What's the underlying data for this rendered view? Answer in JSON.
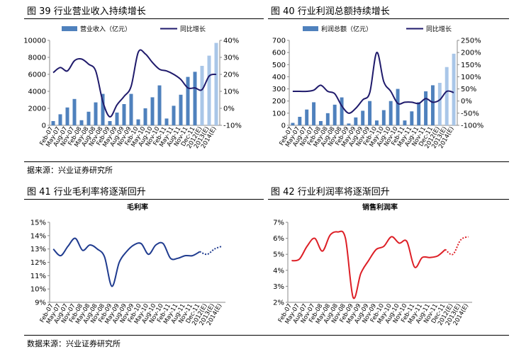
{
  "figures": {
    "fig39_title": "图 39 行业营业收入持续增长",
    "fig40_title": "图 40 行业利润总额持续增长",
    "fig41_title": "图 41 行业毛利率将逐渐回升",
    "fig42_title": "图 42 行业利润率将逐渐回升",
    "source_top": "据来源：兴业证券研究所",
    "source_bottom": "数据来源：兴业证券研究所"
  },
  "colors": {
    "bar": "#4f81bd",
    "bar_forecast": "#a9c6e8",
    "line_navy": "#1f1a6b",
    "line_blue": "#1f3b8f",
    "line_red": "#dd1f26"
  },
  "chart_data": [
    {
      "id": "c39",
      "type": "bar",
      "title": "",
      "categories": [
        "Feb-07",
        "May-07",
        "Aug-07",
        "Nov-07",
        "Feb-08",
        "May-08",
        "Aug-08",
        "Nov-08",
        "Feb-09",
        "May-09",
        "Aug-09",
        "Nov-09",
        "Feb-10",
        "May-10",
        "Aug-10",
        "Nov-10",
        "Feb-11",
        "May-11",
        "Aug-11",
        "Nov-11",
        "Dec-11",
        "2012(E)",
        "2013(E)",
        "2014(E)"
      ],
      "ylim": [
        0,
        10000
      ],
      "yticks": [
        0,
        2000,
        4000,
        6000,
        8000,
        10000
      ],
      "y2lim": [
        -10,
        40
      ],
      "y2ticks": [
        "-10%",
        "0%",
        "10%",
        "20%",
        "30%",
        "40%"
      ],
      "series": [
        {
          "name": "营业收入（亿元）",
          "kind": "bar",
          "values": [
            500,
            1300,
            2100,
            3100,
            600,
            1600,
            2700,
            3700,
            500,
            1500,
            2500,
            3700,
            700,
            2000,
            3300,
            4700,
            800,
            2300,
            3600,
            5700,
            6300,
            7000,
            8200,
            9700
          ],
          "forecast_from": 21
        },
        {
          "name": "同比增长",
          "kind": "line",
          "axis": "right",
          "values": [
            21,
            24,
            22,
            28,
            29,
            26,
            22,
            4,
            -5,
            2,
            7,
            13,
            33,
            32,
            27,
            23,
            22,
            20,
            17,
            12,
            12,
            11,
            19,
            20
          ],
          "dashed_from": 999
        }
      ]
    },
    {
      "id": "c40",
      "type": "bar",
      "title": "",
      "categories": [
        "Feb-07",
        "May-07",
        "Aug-07",
        "Nov-07",
        "Feb-08",
        "May-08",
        "Aug-08",
        "Nov-08",
        "Feb-09",
        "May-09",
        "Aug-09",
        "Nov-09",
        "Feb-10",
        "May-10",
        "Aug-10",
        "Nov-10",
        "Feb-11",
        "May-11",
        "Aug-11",
        "Nov-11",
        "Dec-11",
        "2012(E)",
        "2013(E)",
        "2014(E)"
      ],
      "ylim": [
        0,
        700
      ],
      "yticks": [
        0,
        100,
        200,
        300,
        400,
        500,
        600,
        700
      ],
      "y2lim": [
        -100,
        250
      ],
      "y2ticks": [
        "-100%",
        "-50%",
        "0%",
        "50%",
        "100%",
        "150%",
        "200%",
        "250%"
      ],
      "series": [
        {
          "name": "利润总额（亿元）",
          "kind": "bar",
          "values": [
            20,
            70,
            130,
            190,
            35,
            100,
            170,
            230,
            15,
            65,
            120,
            200,
            40,
            125,
            200,
            300,
            40,
            115,
            190,
            280,
            330,
            350,
            480,
            590
          ],
          "forecast_from": 21
        },
        {
          "name": "同比增长",
          "kind": "line",
          "axis": "right",
          "values": [
            40,
            40,
            40,
            45,
            65,
            40,
            30,
            -20,
            -50,
            -30,
            5,
            35,
            200,
            80,
            40,
            -10,
            -5,
            -5,
            -10,
            10,
            -5,
            5,
            40,
            35
          ],
          "dashed_from": 999
        }
      ]
    },
    {
      "id": "c41",
      "type": "line",
      "title": "毛利率",
      "categories": [
        "Feb-07",
        "May-07",
        "Aug-07",
        "Nov-07",
        "Feb-08",
        "May-08",
        "Aug-08",
        "Nov-08",
        "Feb-09",
        "May-09",
        "Aug-09",
        "Nov-09",
        "Feb-10",
        "May-10",
        "Aug-10",
        "Nov-10",
        "Feb-11",
        "May-11",
        "Aug-11",
        "Nov-11",
        "Dec-11",
        "2012(E)",
        "2013(E)",
        "2014(E)"
      ],
      "ylim": [
        9,
        15
      ],
      "yticks": [
        "9%",
        "10%",
        "11%",
        "12%",
        "13%",
        "14%",
        "15%"
      ],
      "series": [
        {
          "name": "毛利率",
          "values": [
            13.0,
            12.5,
            13.2,
            13.8,
            12.9,
            13.3,
            13.0,
            12.4,
            10.2,
            12.0,
            12.8,
            13.3,
            13.4,
            12.6,
            13.3,
            13.4,
            12.3,
            12.3,
            12.5,
            12.5,
            12.8,
            12.6,
            13.0,
            13.2
          ],
          "dashed_from": 20
        }
      ]
    },
    {
      "id": "c42",
      "type": "line",
      "title": "销售利润率",
      "categories": [
        "Feb-07",
        "May-07",
        "Aug-07",
        "Nov-07",
        "Feb-08",
        "May-08",
        "Aug-08",
        "Nov-08",
        "Feb-09",
        "May-09",
        "Aug-09",
        "Nov-09",
        "Feb-10",
        "May-10",
        "Aug-10",
        "Nov-10",
        "Feb-11",
        "May-11",
        "Aug-11",
        "Nov-11",
        "Dec-11",
        "2012(E)",
        "2013(E)",
        "2014(E)"
      ],
      "ylim": [
        2,
        7
      ],
      "yticks": [
        "2%",
        "3%",
        "4%",
        "5%",
        "6%",
        "7%"
      ],
      "series": [
        {
          "name": "销售利润率",
          "values": [
            4.6,
            4.7,
            5.5,
            6.0,
            5.2,
            6.2,
            6.4,
            6.0,
            2.3,
            3.8,
            4.6,
            5.3,
            5.5,
            6.1,
            5.7,
            5.8,
            4.2,
            4.8,
            4.8,
            4.9,
            5.3,
            5.0,
            5.9,
            6.1
          ],
          "dashed_from": 20
        }
      ]
    }
  ]
}
